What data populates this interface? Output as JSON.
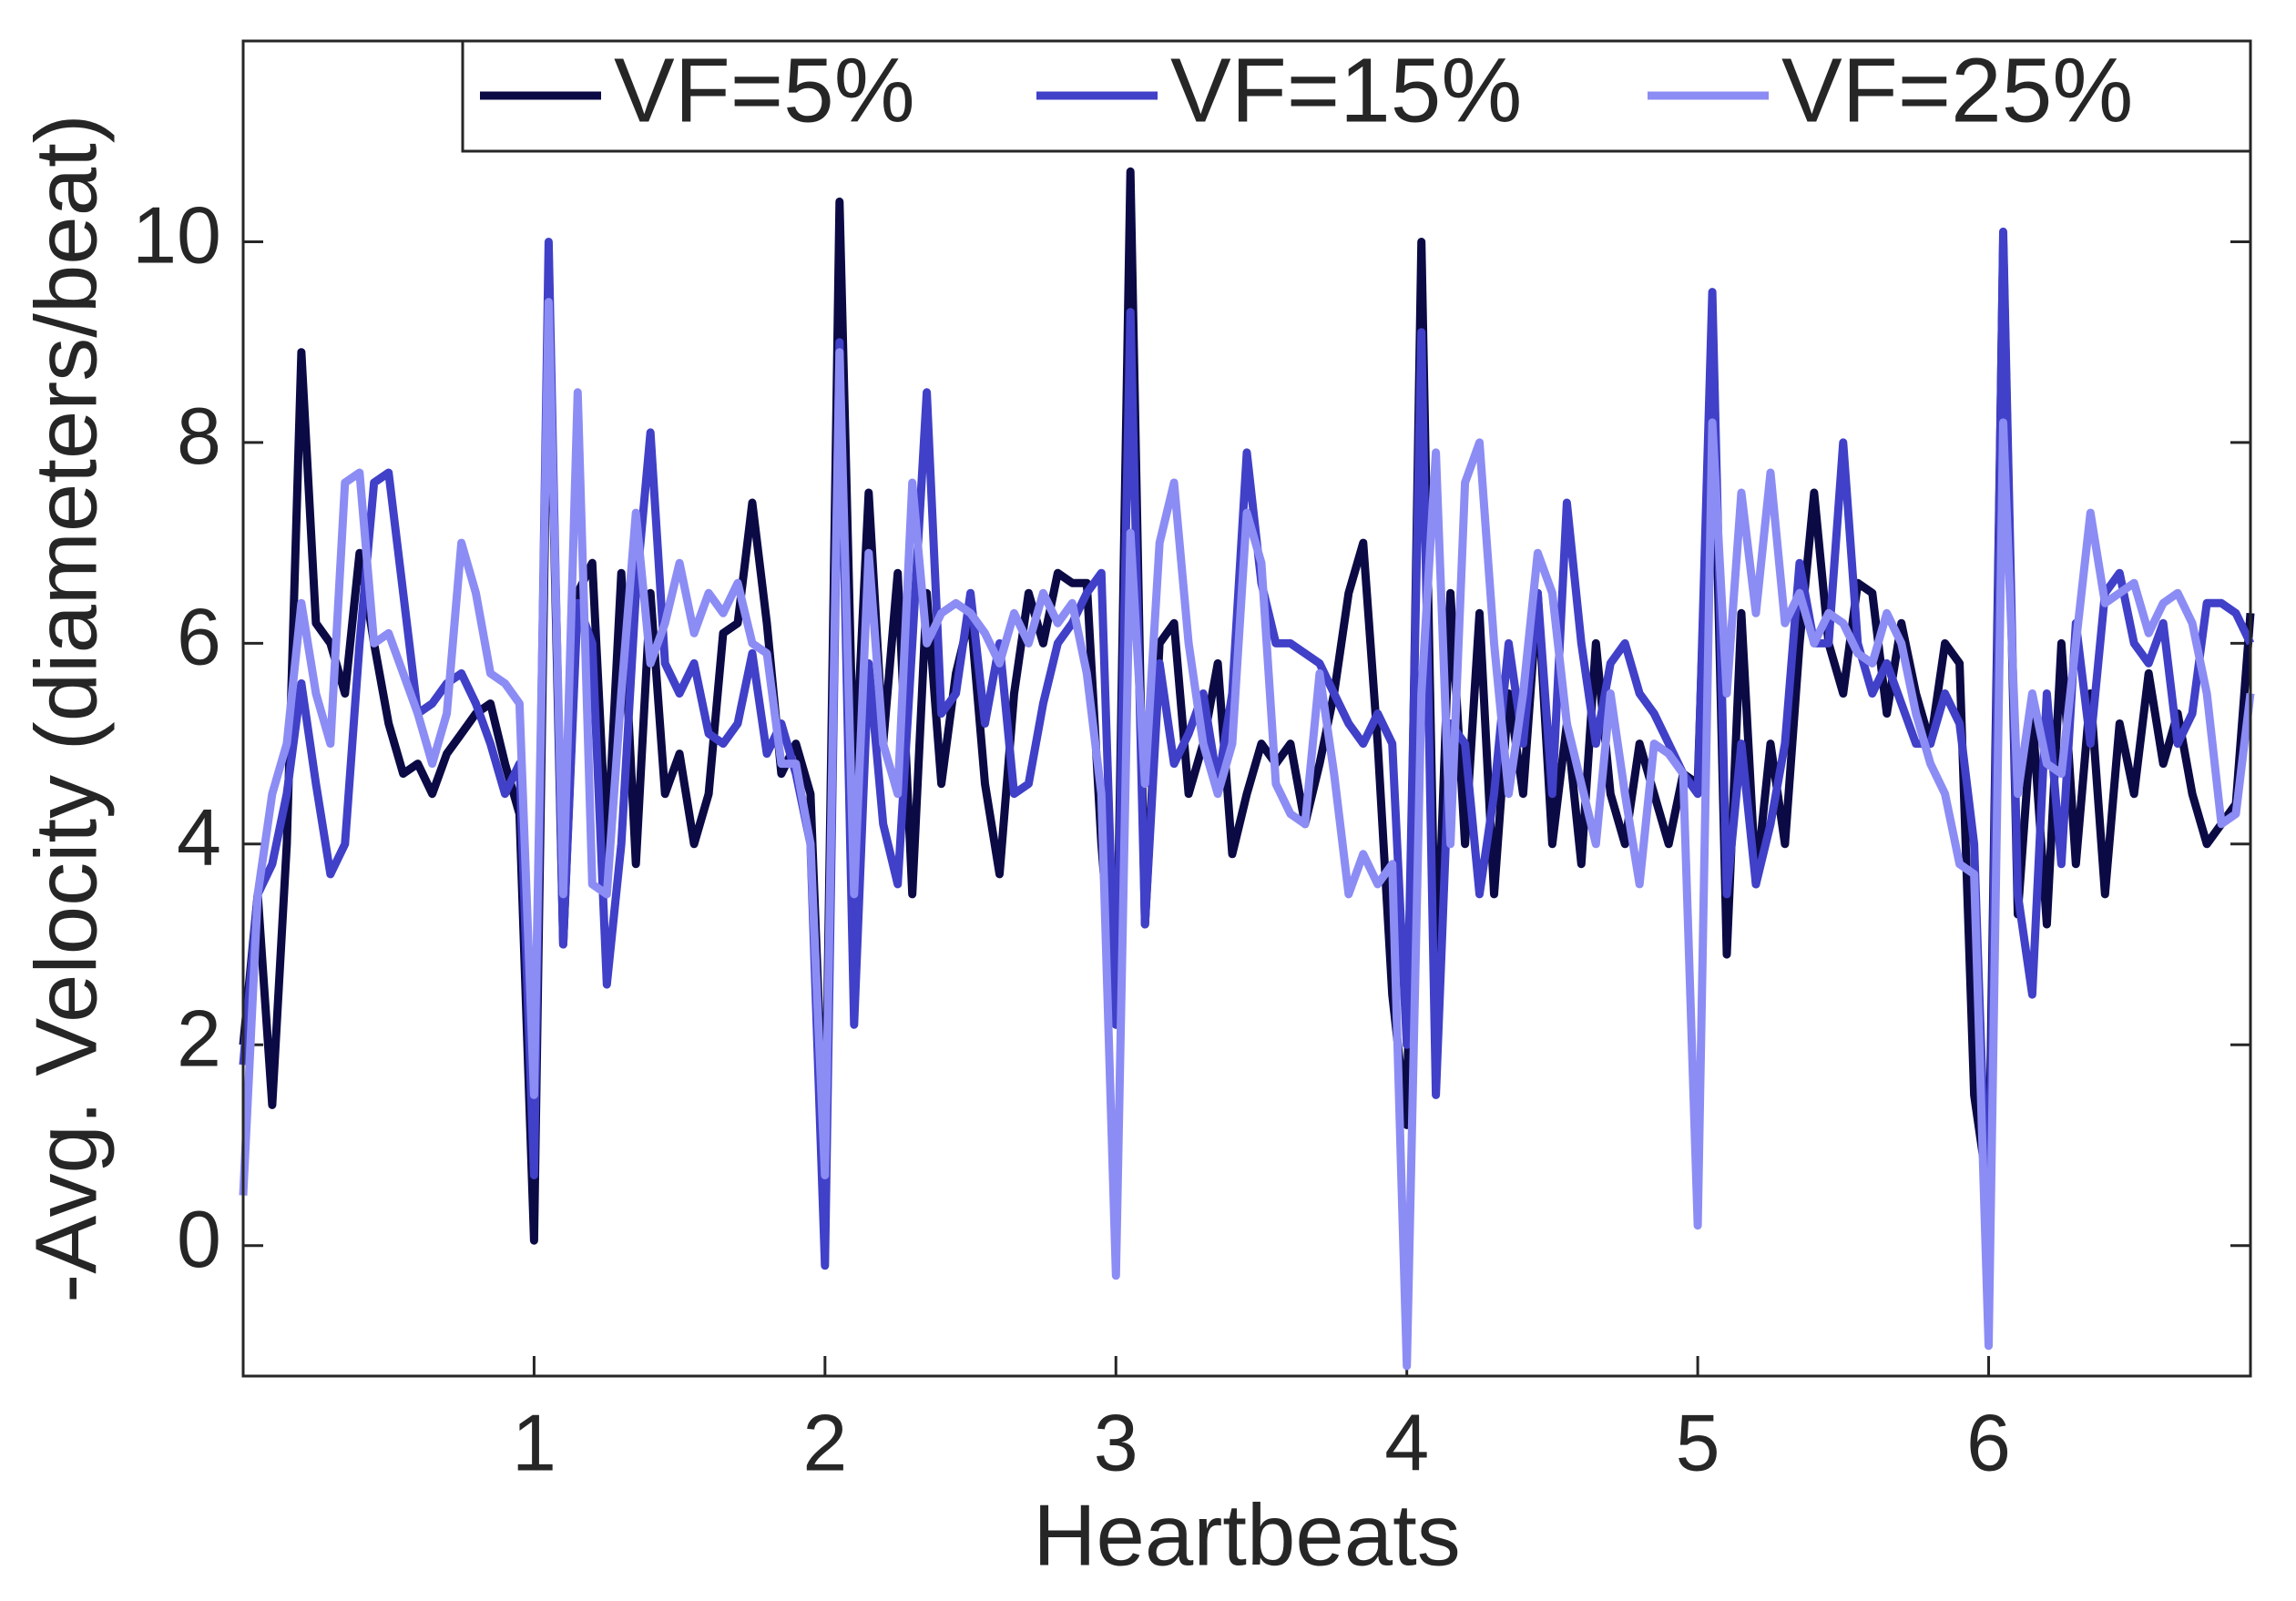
{
  "chart_data": {
    "type": "line",
    "x_label": "Heartbeats",
    "y_label": "-Avg. Velocity (diameters/beat)",
    "x": [
      0,
      0.05,
      0.1,
      0.15,
      0.2,
      0.25,
      0.3,
      0.35,
      0.4,
      0.45,
      0.5,
      0.55,
      0.6,
      0.65,
      0.7,
      0.75,
      0.8,
      0.85,
      0.9,
      0.95,
      1,
      1.05,
      1.1,
      1.15,
      1.2,
      1.25,
      1.3,
      1.35,
      1.4,
      1.45,
      1.5,
      1.55,
      1.6,
      1.65,
      1.7,
      1.75,
      1.8,
      1.85,
      1.9,
      1.95,
      2,
      2.05,
      2.1,
      2.15,
      2.2,
      2.25,
      2.3,
      2.35,
      2.4,
      2.45,
      2.5,
      2.55,
      2.6,
      2.65,
      2.7,
      2.75,
      2.8,
      2.85,
      2.9,
      2.95,
      3,
      3.05,
      3.1,
      3.15,
      3.2,
      3.25,
      3.3,
      3.35,
      3.4,
      3.45,
      3.5,
      3.55,
      3.6,
      3.65,
      3.7,
      3.75,
      3.8,
      3.85,
      3.9,
      3.95,
      4,
      4.05,
      4.1,
      4.15,
      4.2,
      4.25,
      4.3,
      4.35,
      4.4,
      4.45,
      4.5,
      4.55,
      4.6,
      4.65,
      4.7,
      4.75,
      4.8,
      4.85,
      4.9,
      4.95,
      5,
      5.05,
      5.1,
      5.15,
      5.2,
      5.25,
      5.3,
      5.35,
      5.4,
      5.45,
      5.5,
      5.55,
      5.6,
      5.65,
      5.7,
      5.75,
      5.8,
      5.85,
      5.9,
      5.95,
      6,
      6.05,
      6.1,
      6.15,
      6.2,
      6.25,
      6.3,
      6.35,
      6.4,
      6.45,
      6.5,
      6.55,
      6.6,
      6.65,
      6.7,
      6.75,
      6.8,
      6.85,
      6.9
    ],
    "series": [
      {
        "name": "VF=5%",
        "color": "#0b0a45",
        "values": [
          2.0,
          3.5,
          1.4,
          4.0,
          8.9,
          6.2,
          6.0,
          5.5,
          6.9,
          6.0,
          5.2,
          4.7,
          4.8,
          4.5,
          4.9,
          5.1,
          5.3,
          5.4,
          4.8,
          4.3,
          0.05,
          9.5,
          3.0,
          6.5,
          6.8,
          3.9,
          6.7,
          3.8,
          6.5,
          4.5,
          4.9,
          4.0,
          4.5,
          6.1,
          6.2,
          7.4,
          6.2,
          4.7,
          5.0,
          4.5,
          0.8,
          10.4,
          4.5,
          7.5,
          5.0,
          6.7,
          3.5,
          6.5,
          4.6,
          5.7,
          6.3,
          4.6,
          3.7,
          5.5,
          6.5,
          6.0,
          6.7,
          6.6,
          6.6,
          4.0,
          2.2,
          10.7,
          3.2,
          6.0,
          6.2,
          4.5,
          5.0,
          5.8,
          3.9,
          4.5,
          5.0,
          4.8,
          5.0,
          4.2,
          4.8,
          5.5,
          6.5,
          7.0,
          5.0,
          2.5,
          1.2,
          10.0,
          2.5,
          6.5,
          4.0,
          6.3,
          3.5,
          5.5,
          4.5,
          6.5,
          4.0,
          5.2,
          3.8,
          6.0,
          4.5,
          4.0,
          5.0,
          4.5,
          4.0,
          4.7,
          4.6,
          9.0,
          2.9,
          6.3,
          3.6,
          5.0,
          4.0,
          6.0,
          7.5,
          6.0,
          5.5,
          6.6,
          6.5,
          5.3,
          6.2,
          5.5,
          5.0,
          6.0,
          5.8,
          1.5,
          0.5,
          10.0,
          3.3,
          5.3,
          3.2,
          6.0,
          3.8,
          5.5,
          3.5,
          5.2,
          4.5,
          5.7,
          4.8,
          5.3,
          4.5,
          4.0,
          4.2,
          4.4,
          6.3
        ]
      },
      {
        "name": "VF=15%",
        "color": "#4040c8",
        "values": [
          1.8,
          3.5,
          3.8,
          4.5,
          5.6,
          4.6,
          3.7,
          4.0,
          6.0,
          7.6,
          7.7,
          6.5,
          5.3,
          5.4,
          5.6,
          5.7,
          5.4,
          5.0,
          4.5,
          4.8,
          0.7,
          10.0,
          3.0,
          6.4,
          6.0,
          2.6,
          4.0,
          6.5,
          8.1,
          5.8,
          5.5,
          5.8,
          5.1,
          5.0,
          5.2,
          5.9,
          4.9,
          5.2,
          4.7,
          4.0,
          -0.2,
          9.0,
          2.2,
          5.8,
          4.2,
          3.6,
          6.0,
          8.5,
          5.3,
          5.5,
          6.5,
          5.2,
          6.0,
          4.5,
          4.6,
          5.4,
          6.0,
          6.2,
          6.5,
          6.7,
          2.2,
          9.3,
          3.2,
          5.8,
          4.8,
          5.1,
          5.5,
          4.6,
          5.5,
          7.9,
          6.6,
          6.0,
          6.0,
          5.9,
          5.8,
          5.5,
          5.2,
          5.0,
          5.3,
          5.0,
          2.0,
          9.1,
          1.5,
          5.2,
          5.0,
          3.5,
          4.5,
          6.0,
          5.0,
          6.5,
          4.5,
          7.4,
          6.0,
          5.0,
          5.8,
          6.0,
          5.5,
          5.3,
          5.0,
          4.7,
          4.5,
          9.5,
          3.5,
          5.0,
          3.6,
          4.2,
          5.0,
          6.8,
          6.0,
          6.0,
          8.0,
          6.0,
          5.5,
          5.8,
          5.4,
          5.0,
          5.0,
          5.5,
          5.2,
          4.0,
          -0.2,
          10.1,
          3.5,
          2.5,
          5.5,
          3.8,
          6.2,
          5.0,
          6.5,
          6.7,
          6.0,
          5.8,
          6.2,
          5.0,
          5.3,
          6.4,
          6.4,
          6.3,
          6.0
        ]
      },
      {
        "name": "VF=25%",
        "color": "#8c8cf5",
        "values": [
          0.5,
          3.5,
          4.5,
          5.0,
          6.4,
          5.5,
          5.0,
          7.6,
          7.7,
          6.0,
          6.1,
          5.7,
          5.3,
          4.8,
          5.3,
          7.0,
          6.5,
          5.7,
          5.6,
          5.4,
          1.5,
          9.4,
          3.5,
          8.5,
          3.6,
          3.5,
          5.5,
          7.3,
          5.8,
          6.2,
          6.8,
          6.1,
          6.5,
          6.3,
          6.6,
          6.0,
          5.9,
          4.8,
          4.8,
          4.0,
          0.7,
          8.9,
          3.5,
          6.9,
          5.0,
          4.5,
          7.6,
          6.0,
          6.3,
          6.4,
          6.3,
          6.1,
          5.8,
          6.3,
          6.0,
          6.5,
          6.2,
          6.4,
          5.7,
          4.5,
          -0.3,
          7.1,
          4.6,
          7.0,
          7.6,
          6.0,
          5.0,
          4.5,
          5.0,
          7.3,
          6.8,
          4.6,
          4.3,
          4.2,
          5.7,
          4.7,
          3.5,
          3.9,
          3.6,
          3.8,
          -1.2,
          5.5,
          7.9,
          4.0,
          7.6,
          8.0,
          6.0,
          4.5,
          5.5,
          6.9,
          6.5,
          5.2,
          4.6,
          4.0,
          5.5,
          4.5,
          3.6,
          5.0,
          4.9,
          4.7,
          0.2,
          8.2,
          5.5,
          7.5,
          6.3,
          7.7,
          6.2,
          6.5,
          6.0,
          6.3,
          6.2,
          5.9,
          5.8,
          6.3,
          6.0,
          5.3,
          4.8,
          4.5,
          3.8,
          3.7,
          -1.0,
          8.2,
          4.5,
          5.5,
          4.8,
          4.7,
          6.0,
          7.3,
          6.4,
          6.5,
          6.6,
          6.1,
          6.4,
          6.5,
          6.2,
          5.5,
          4.2,
          4.3,
          5.5
        ]
      }
    ],
    "xlim": [
      0,
      6.9
    ],
    "xticks": [
      1,
      2,
      3,
      4,
      5,
      6
    ],
    "ylim": [
      -1.3,
      12
    ],
    "yticks": [
      0,
      2,
      4,
      6,
      8,
      10
    ],
    "grid": false,
    "legend": "upper right"
  }
}
